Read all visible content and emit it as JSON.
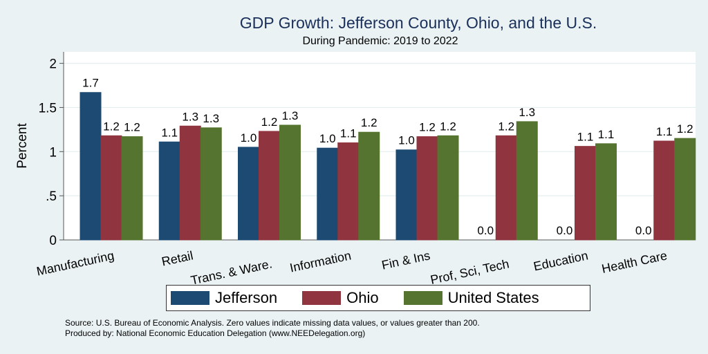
{
  "chart_data": {
    "type": "bar",
    "title": "GDP Growth: Jefferson County, Ohio, and the U.S.",
    "subtitle": "During Pandemic: 2019 to 2022",
    "xlabel": "",
    "ylabel": "Percent",
    "ylim": [
      0,
      2.13
    ],
    "yticks": [
      0,
      0.5,
      1,
      1.5,
      2
    ],
    "ytick_labels": [
      "0",
      ".5",
      "1",
      "1.5",
      "2"
    ],
    "grid": true,
    "legend_position": "bottom",
    "categories": [
      "Manufacturing",
      "Retail",
      "Trans. & Ware.",
      "Information",
      "Fin & Ins",
      "Prof, Sci, Tech",
      "Education",
      "Health Care"
    ],
    "series": [
      {
        "name": "Jefferson",
        "color": "#1c4a72",
        "values": [
          1.67,
          1.11,
          1.05,
          1.04,
          1.02,
          0,
          0,
          0
        ],
        "labels": [
          "1.7",
          "1.1",
          "1.0",
          "1.0",
          "1.0",
          "0.0",
          "0.0",
          "0.0"
        ]
      },
      {
        "name": "Ohio",
        "color": "#90353f",
        "values": [
          1.18,
          1.29,
          1.23,
          1.1,
          1.17,
          1.18,
          1.06,
          1.12
        ],
        "labels": [
          "1.2",
          "1.3",
          "1.2",
          "1.1",
          "1.2",
          "1.2",
          "1.1",
          "1.1"
        ]
      },
      {
        "name": "United States",
        "color": "#55742f",
        "values": [
          1.17,
          1.27,
          1.3,
          1.22,
          1.18,
          1.34,
          1.09,
          1.15
        ],
        "labels": [
          "1.2",
          "1.3",
          "1.3",
          "1.2",
          "1.2",
          "1.3",
          "1.1",
          "1.2"
        ]
      }
    ],
    "footer": [
      "Source: U.S. Bureau of Economic Analysis. Zero values indicate missing data values, or values greater than 200.",
      "Produced by: National Economic Education Delegation (www.NEEDelegation.org)"
    ]
  }
}
